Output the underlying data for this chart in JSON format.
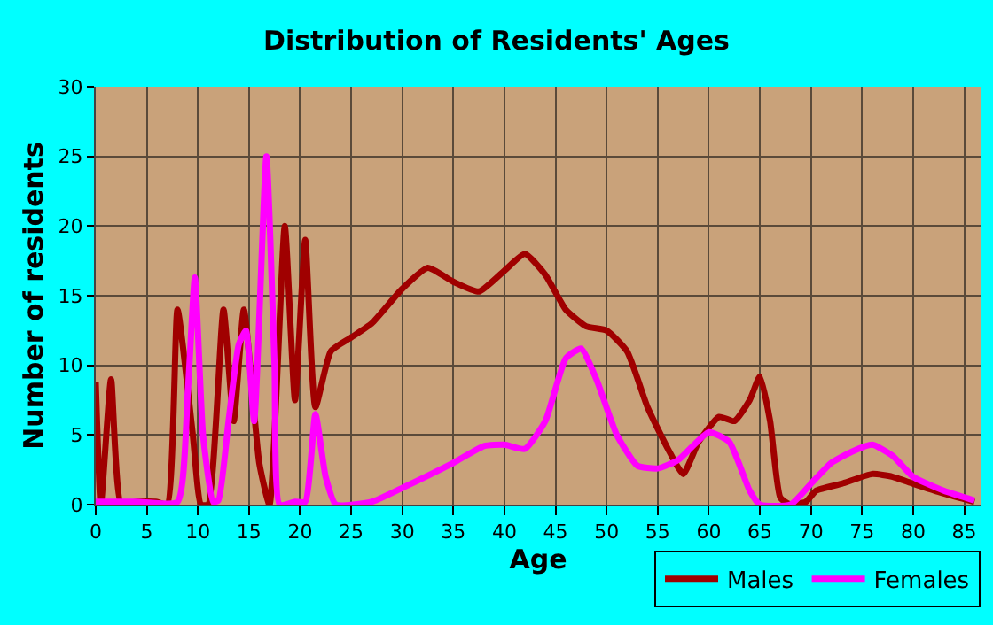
{
  "chart_data": {
    "type": "line",
    "title": "Distribution of Residents' Ages",
    "xlabel": "Age",
    "ylabel": "Number of residents",
    "xlim": [
      0,
      86.6
    ],
    "xticks": [
      0,
      5,
      10,
      15,
      20,
      25,
      30,
      35,
      40,
      45,
      50,
      55,
      60,
      65,
      70,
      75,
      80,
      85
    ],
    "ylim": [
      0,
      30
    ],
    "yticks": [
      0,
      5,
      10,
      15,
      20,
      25,
      30
    ],
    "grid": true,
    "legend": "bottom right",
    "marker": "none",
    "line_style": "solid",
    "series": [
      {
        "name": "Males",
        "color": "#a00000",
        "x": [
          0,
          0.5,
          1.5,
          2.5,
          4,
          6,
          7,
          8,
          9.5,
          10.3,
          11,
          12.5,
          13.5,
          14.5,
          16,
          17,
          18.5,
          19.5,
          20.5,
          21.5,
          23,
          25,
          27,
          30,
          32.5,
          35,
          37.5,
          40,
          42,
          44,
          46,
          48,
          50,
          52,
          54,
          56,
          57.5,
          59,
          61,
          62.5,
          64,
          65,
          66,
          67,
          68,
          69.5,
          70.5,
          73,
          76,
          78,
          80,
          83,
          86
        ],
        "values": [
          8.8,
          0,
          9,
          0,
          0.2,
          0.2,
          0,
          14,
          5,
          0,
          0,
          14,
          6,
          14,
          3,
          0,
          20,
          7.5,
          19,
          7,
          11,
          12,
          13,
          15.5,
          17,
          16,
          15.3,
          16.8,
          18,
          16.5,
          14,
          12.8,
          12.5,
          11,
          7,
          4,
          2.2,
          4.5,
          6.3,
          6,
          7.5,
          9.2,
          6,
          0.5,
          0,
          0.2,
          1,
          1.5,
          2.2,
          2,
          1.5,
          0.8,
          0.2
        ]
      },
      {
        "name": "Females",
        "color": "#ff00ff",
        "x": [
          0,
          4,
          8,
          9,
          9.7,
          10.5,
          11.5,
          12,
          13,
          14,
          14.7,
          15.5,
          16.7,
          17.5,
          18,
          19.5,
          20.5,
          21.5,
          22.5,
          23.5,
          27,
          30,
          35,
          38,
          40,
          42,
          44,
          46,
          47.5,
          49,
          51,
          53,
          55,
          57,
          60,
          62,
          64,
          65,
          68,
          70,
          72,
          74,
          76,
          78,
          80,
          83,
          86
        ],
        "values": [
          0.2,
          0.2,
          0.2,
          8,
          16.3,
          5,
          0.2,
          0.3,
          6,
          11.5,
          12.5,
          6,
          25,
          10,
          0,
          0.2,
          0.2,
          6.5,
          2,
          0,
          0.2,
          1.2,
          3,
          4.2,
          4.3,
          4,
          6,
          10.5,
          11.2,
          9,
          5,
          2.8,
          2.6,
          3.2,
          5.2,
          4.5,
          1,
          0,
          0,
          1.5,
          3,
          3.8,
          4.3,
          3.5,
          2,
          1,
          0.3
        ]
      }
    ]
  }
}
